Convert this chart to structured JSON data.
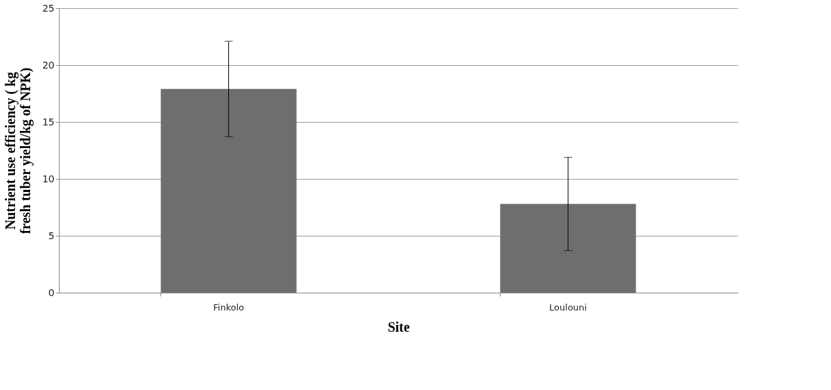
{
  "chart_data": {
    "type": "bar",
    "xlabel": "Site",
    "ylabel": "Nutrient use efficiency ( kg fresh tuber yield/kg of NPK)",
    "categories": [
      "Finkolo",
      "Loulouni"
    ],
    "values": [
      17.9,
      7.8
    ],
    "errors": [
      4.2,
      4.1
    ],
    "color": "#6e6e6e",
    "ylim": [
      0,
      25
    ],
    "yticks": [
      0,
      5,
      10,
      15,
      20,
      25
    ],
    "grid": "y"
  }
}
